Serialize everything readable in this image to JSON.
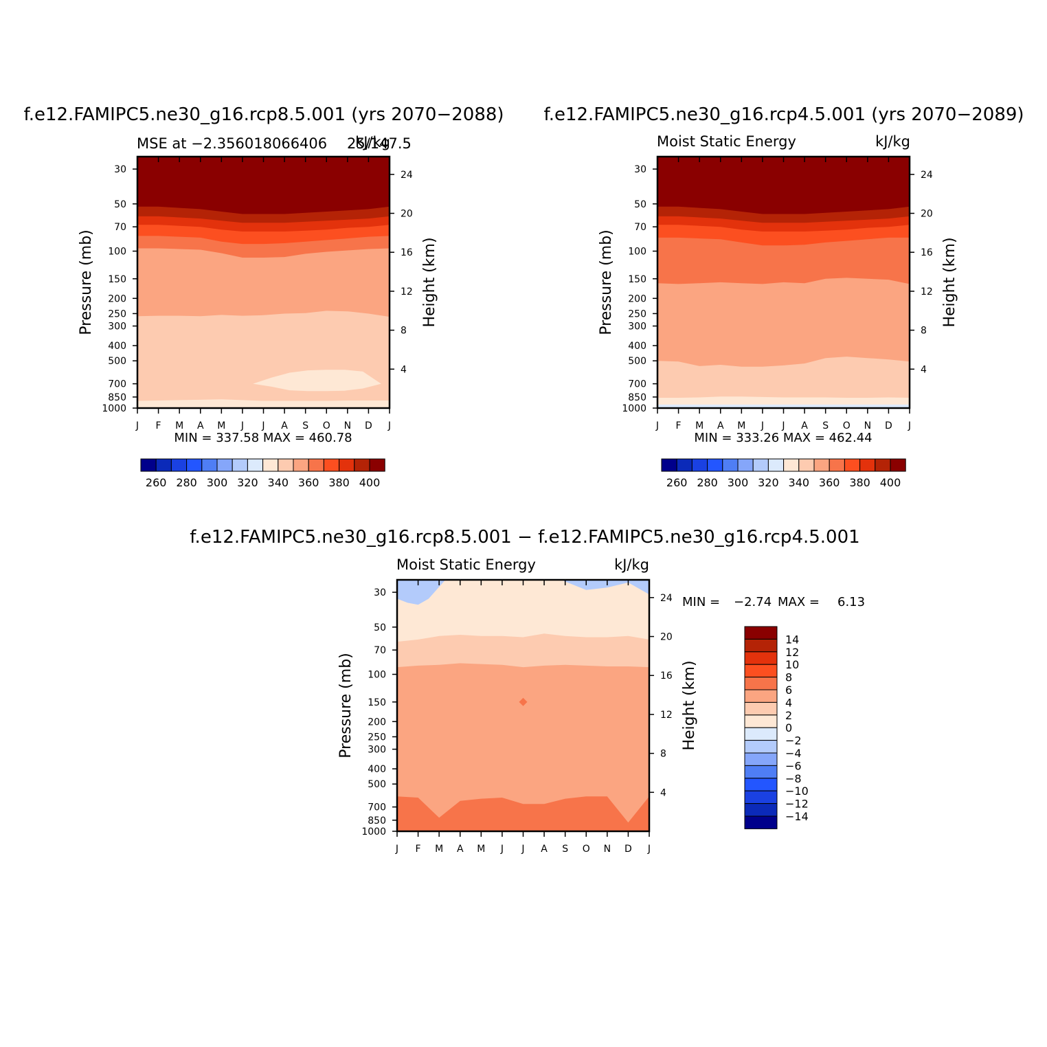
{
  "chart_data": [
    {
      "type": "heatmap",
      "panel": "top-left",
      "title": "f.e12.FAMIPC5.ne30_g16.rcp8.5.001 (yrs 2070−2088)",
      "subtitle_left": "MSE at −2.356018066406",
      "subtitle_overlap": "25/147.5",
      "units": "kJ/kg",
      "ylabel": "Pressure (mb)",
      "y2label": "Height (km)",
      "months": [
        "J",
        "F",
        "M",
        "A",
        "M",
        "J",
        "J",
        "A",
        "S",
        "O",
        "N",
        "D",
        "J"
      ],
      "pressure_ticks": [
        "30",
        "50",
        "70",
        "100",
        "150",
        "200",
        "250",
        "300",
        "400",
        "500",
        "700",
        "850",
        "1000"
      ],
      "height_ticks": [
        "24",
        "20",
        "16",
        "12",
        "8",
        "4"
      ],
      "min_max": "MIN = 337.58 MAX = 460.78",
      "contour_bands": [
        {
          "level": 400,
          "boundary_mb": [
            52,
            52,
            53,
            54,
            56,
            58,
            58,
            58,
            57,
            56,
            55,
            54,
            52
          ]
        },
        {
          "level": 390,
          "boundary_mb": [
            60,
            60,
            61,
            62,
            64,
            66,
            66,
            66,
            65,
            64,
            63,
            62,
            60
          ]
        },
        {
          "level": 380,
          "boundary_mb": [
            68,
            68,
            69,
            70,
            73,
            75,
            75,
            75,
            74,
            73,
            71,
            70,
            68
          ]
        },
        {
          "level": 370,
          "boundary_mb": [
            80,
            80,
            81,
            82,
            87,
            90,
            90,
            89,
            87,
            85,
            83,
            81,
            80
          ]
        },
        {
          "level": 360,
          "boundary_mb": [
            96,
            96,
            97,
            98,
            103,
            110,
            110,
            109,
            104,
            101,
            99,
            97,
            96
          ]
        },
        {
          "level": 350,
          "boundary_mb": [
            260,
            258,
            258,
            260,
            255,
            258,
            256,
            250,
            248,
            240,
            242,
            250,
            262
          ]
        },
        {
          "level": 340,
          "boundary_mb": [
            900,
            895,
            890,
            885,
            880,
            890,
            900,
            900,
            900,
            900,
            895,
            895,
            895
          ]
        }
      ],
      "fill_region_mb": {
        "level": 330,
        "start_month": 5.5,
        "end_month": 11.6,
        "top_mb": [
          700,
          640,
          595,
          575,
          570,
          570,
          585,
          700
        ],
        "bottom_mb": [
          700,
          730,
          770,
          780,
          780,
          775,
          750,
          700
        ]
      },
      "colorbar": {
        "orientation": "horizontal",
        "labels": [
          "260",
          "280",
          "300",
          "320",
          "340",
          "360",
          "380",
          "400"
        ],
        "colors": [
          "#00008b",
          "#0b2ab9",
          "#1a41e2",
          "#2356ff",
          "#4f7ef5",
          "#85a6fa",
          "#b3cbfb",
          "#dceafc",
          "#fee8d5",
          "#fdcbb0",
          "#fba581",
          "#f7744a",
          "#fc4f20",
          "#e3320c",
          "#b42306",
          "#8a0000"
        ]
      }
    },
    {
      "type": "heatmap",
      "panel": "top-right",
      "title": "f.e12.FAMIPC5.ne30_g16.rcp4.5.001 (yrs 2070−2089)",
      "subtitle_left": "Moist Static Energy",
      "units": "kJ/kg",
      "ylabel": "Pressure (mb)",
      "y2label": "Height (km)",
      "months": [
        "J",
        "F",
        "M",
        "A",
        "M",
        "J",
        "J",
        "A",
        "S",
        "O",
        "N",
        "D",
        "J"
      ],
      "pressure_ticks": [
        "30",
        "50",
        "70",
        "100",
        "150",
        "200",
        "250",
        "300",
        "400",
        "500",
        "700",
        "850",
        "1000"
      ],
      "height_ticks": [
        "24",
        "20",
        "16",
        "12",
        "8",
        "4"
      ],
      "min_max": "MIN = 333.26 MAX = 462.44",
      "contour_bands": [
        {
          "level": 400,
          "boundary_mb": [
            52,
            52,
            53,
            54,
            56,
            58,
            58,
            58,
            57,
            56,
            55,
            54,
            52
          ]
        },
        {
          "level": 390,
          "boundary_mb": [
            60,
            60,
            61,
            62,
            64,
            66,
            66,
            66,
            65,
            64,
            63,
            62,
            60
          ]
        },
        {
          "level": 380,
          "boundary_mb": [
            68,
            68,
            69,
            70,
            73,
            75,
            75,
            75,
            74,
            73,
            71,
            70,
            68
          ]
        },
        {
          "level": 370,
          "boundary_mb": [
            82,
            82,
            83,
            84,
            88,
            92,
            92,
            91,
            88,
            86,
            84,
            82,
            82
          ]
        },
        {
          "level": 360,
          "boundary_mb": [
            160,
            162,
            160,
            158,
            160,
            162,
            158,
            160,
            150,
            148,
            150,
            152,
            162
          ]
        },
        {
          "level": 350,
          "boundary_mb": [
            500,
            505,
            540,
            530,
            545,
            545,
            535,
            520,
            480,
            470,
            480,
            490,
            505
          ]
        },
        {
          "level": 340,
          "boundary_mb": [
            860,
            860,
            855,
            845,
            845,
            850,
            855,
            855,
            855,
            860,
            860,
            855,
            860
          ]
        },
        {
          "level": 330,
          "boundary_mb": [
            950,
            950,
            950,
            950,
            950,
            950,
            950,
            950,
            950,
            950,
            950,
            950,
            950
          ]
        }
      ],
      "colorbar": {
        "orientation": "horizontal",
        "labels": [
          "260",
          "280",
          "300",
          "320",
          "340",
          "360",
          "380",
          "400"
        ],
        "colors": [
          "#00008b",
          "#0b2ab9",
          "#1a41e2",
          "#2356ff",
          "#4f7ef5",
          "#85a6fa",
          "#b3cbfb",
          "#dceafc",
          "#fee8d5",
          "#fdcbb0",
          "#fba581",
          "#f7744a",
          "#fc4f20",
          "#e3320c",
          "#b42306",
          "#8a0000"
        ]
      }
    },
    {
      "type": "heatmap",
      "panel": "bottom",
      "title": "f.e12.FAMIPC5.ne30_g16.rcp8.5.001 − f.e12.FAMIPC5.ne30_g16.rcp4.5.001",
      "subtitle_left": "Moist Static Energy",
      "units": "kJ/kg",
      "ylabel": "Pressure (mb)",
      "y2label": "Height (km)",
      "months": [
        "J",
        "F",
        "M",
        "A",
        "M",
        "J",
        "J",
        "A",
        "S",
        "O",
        "N",
        "D",
        "J"
      ],
      "pressure_ticks": [
        "30",
        "50",
        "70",
        "100",
        "150",
        "200",
        "250",
        "300",
        "400",
        "500",
        "700",
        "850",
        "1000"
      ],
      "height_ticks": [
        "24",
        "20",
        "16",
        "12",
        "8",
        "4"
      ],
      "min_max_label": "MIN =",
      "min_value": "−2.74",
      "max_label": "MAX =",
      "max_value": "6.13",
      "background_level": 0,
      "contour_bands": [
        {
          "level": 2,
          "boundary_mb": [
            62,
            60,
            57,
            56,
            57,
            57,
            58,
            55,
            57,
            58,
            58,
            57,
            60
          ]
        },
        {
          "level": 4,
          "boundary_mb": [
            90,
            88,
            87,
            85,
            86,
            87,
            90,
            88,
            87,
            88,
            89,
            89,
            90
          ]
        },
        {
          "level": 6,
          "boundary_mb": [
            600,
            610,
            820,
            640,
            620,
            610,
            670,
            670,
            620,
            600,
            600,
            880,
            600
          ]
        }
      ],
      "negative_patches": [
        {
          "level": -2,
          "months": [
            0,
            0.5,
            1,
            1.5,
            2.3
          ],
          "top_mb": [
            25,
            25,
            25,
            25,
            25
          ],
          "bottom_mb": [
            33,
            35,
            36,
            33,
            25
          ]
        },
        {
          "level": -2,
          "months": [
            7.8,
            9,
            10,
            11,
            12
          ],
          "top_mb": [
            25,
            25,
            25,
            25,
            25
          ],
          "bottom_mb": [
            25,
            29,
            28,
            26,
            31
          ]
        }
      ],
      "spot_150mb": {
        "level": 6,
        "month": 6,
        "pressure_mb": 150
      },
      "colorbar": {
        "orientation": "vertical",
        "labels": [
          "14",
          "12",
          "10",
          "8",
          "6",
          "4",
          "2",
          "0",
          "−2",
          "−4",
          "−6",
          "−8",
          "−10",
          "−12",
          "−14"
        ],
        "colors": [
          "#8a0000",
          "#b42306",
          "#e3320c",
          "#fc4f20",
          "#f7744a",
          "#fba581",
          "#fdcbb0",
          "#fee8d5",
          "#dceafc",
          "#b3cbfb",
          "#85a6fa",
          "#4f7ef5",
          "#2356ff",
          "#1a41e2",
          "#0b2ab9",
          "#00008b"
        ]
      }
    }
  ]
}
